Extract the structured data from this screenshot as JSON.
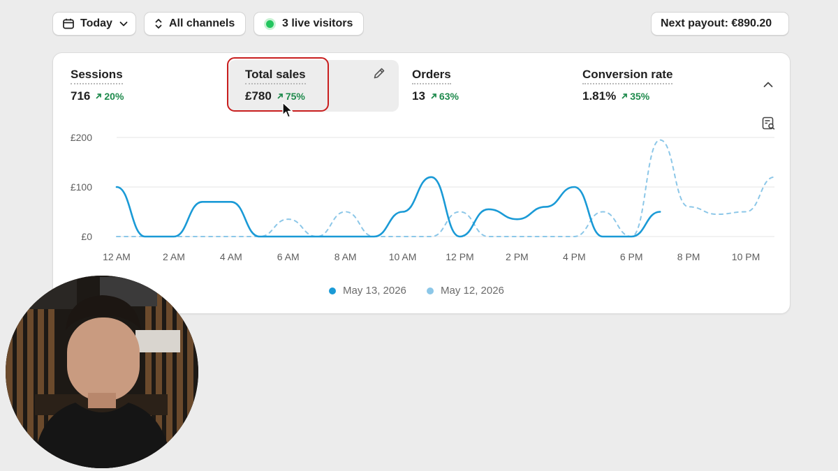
{
  "toolbar": {
    "date_label": "Today",
    "channels_label": "All channels",
    "live_label": "3 live visitors",
    "payout_label": "Next payout: €890.20"
  },
  "metrics": [
    {
      "label": "Sessions",
      "value": "716",
      "change": "20%"
    },
    {
      "label": "Total sales",
      "value": "£780",
      "change": "75%"
    },
    {
      "label": "Orders",
      "value": "13",
      "change": "63%"
    },
    {
      "label": "Conversion rate",
      "value": "1.81%",
      "change": "35%"
    }
  ],
  "colors": {
    "current": "#1a9ad6",
    "previous": "#8cc7e8",
    "positive": "#1e8a4c",
    "highlight": "#c81e1e"
  },
  "chart_data": {
    "type": "line",
    "x": [
      "12 AM",
      "1 AM",
      "2 AM",
      "3 AM",
      "4 AM",
      "5 AM",
      "6 AM",
      "7 AM",
      "8 AM",
      "9 AM",
      "10 AM",
      "11 AM",
      "12 PM",
      "1 PM",
      "2 PM",
      "3 PM",
      "4 PM",
      "5 PM",
      "6 PM",
      "7 PM",
      "8 PM",
      "9 PM",
      "10 PM",
      "11 PM"
    ],
    "x_tick_labels": [
      "12 AM",
      "2 AM",
      "4 AM",
      "6 AM",
      "8 AM",
      "10 AM",
      "12 PM",
      "2 PM",
      "4 PM",
      "6 PM",
      "8 PM",
      "10 PM"
    ],
    "y_tick_labels": [
      "£200",
      "£100",
      "£0"
    ],
    "ylim": [
      0,
      200
    ],
    "grid": true,
    "legend_position": "bottom",
    "series": [
      {
        "name": "May 13, 2026",
        "style": "solid",
        "values": [
          100,
          0,
          0,
          70,
          70,
          0,
          0,
          0,
          0,
          0,
          50,
          120,
          0,
          55,
          35,
          60,
          100,
          0,
          0,
          50,
          null,
          null,
          null,
          null
        ]
      },
      {
        "name": "May 12, 2026",
        "style": "dashed",
        "values": [
          0,
          0,
          0,
          0,
          0,
          0,
          35,
          0,
          50,
          0,
          0,
          0,
          50,
          0,
          0,
          0,
          0,
          50,
          0,
          195,
          60,
          45,
          50,
          120
        ]
      }
    ]
  }
}
